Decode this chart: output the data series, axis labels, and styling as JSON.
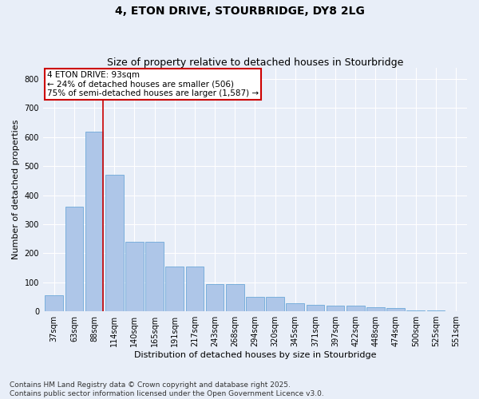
{
  "title": "4, ETON DRIVE, STOURBRIDGE, DY8 2LG",
  "subtitle": "Size of property relative to detached houses in Stourbridge",
  "xlabel": "Distribution of detached houses by size in Stourbridge",
  "ylabel": "Number of detached properties",
  "categories": [
    "37sqm",
    "63sqm",
    "88sqm",
    "114sqm",
    "140sqm",
    "165sqm",
    "191sqm",
    "217sqm",
    "243sqm",
    "268sqm",
    "294sqm",
    "320sqm",
    "345sqm",
    "371sqm",
    "397sqm",
    "422sqm",
    "448sqm",
    "474sqm",
    "500sqm",
    "525sqm",
    "551sqm"
  ],
  "values": [
    55,
    360,
    620,
    470,
    240,
    240,
    155,
    155,
    95,
    95,
    50,
    50,
    28,
    22,
    20,
    20,
    15,
    10,
    3,
    2,
    1
  ],
  "bar_color": "#aec6e8",
  "bar_edge_color": "#5a9fd4",
  "marker_label": "4 ETON DRIVE: 93sqm",
  "annotation_line1": "← 24% of detached houses are smaller (506)",
  "annotation_line2": "75% of semi-detached houses are larger (1,587) →",
  "annotation_box_color": "#ffffff",
  "annotation_box_edge_color": "#cc0000",
  "vline_color": "#cc0000",
  "vline_x_index": 2,
  "ylim": [
    0,
    840
  ],
  "yticks": [
    0,
    100,
    200,
    300,
    400,
    500,
    600,
    700,
    800
  ],
  "bg_color": "#e8eef8",
  "grid_color": "#ffffff",
  "footer": "Contains HM Land Registry data © Crown copyright and database right 2025.\nContains public sector information licensed under the Open Government Licence v3.0.",
  "title_fontsize": 10,
  "subtitle_fontsize": 9,
  "axis_label_fontsize": 8,
  "tick_fontsize": 7,
  "footer_fontsize": 6.5,
  "annotation_fontsize": 7.5
}
